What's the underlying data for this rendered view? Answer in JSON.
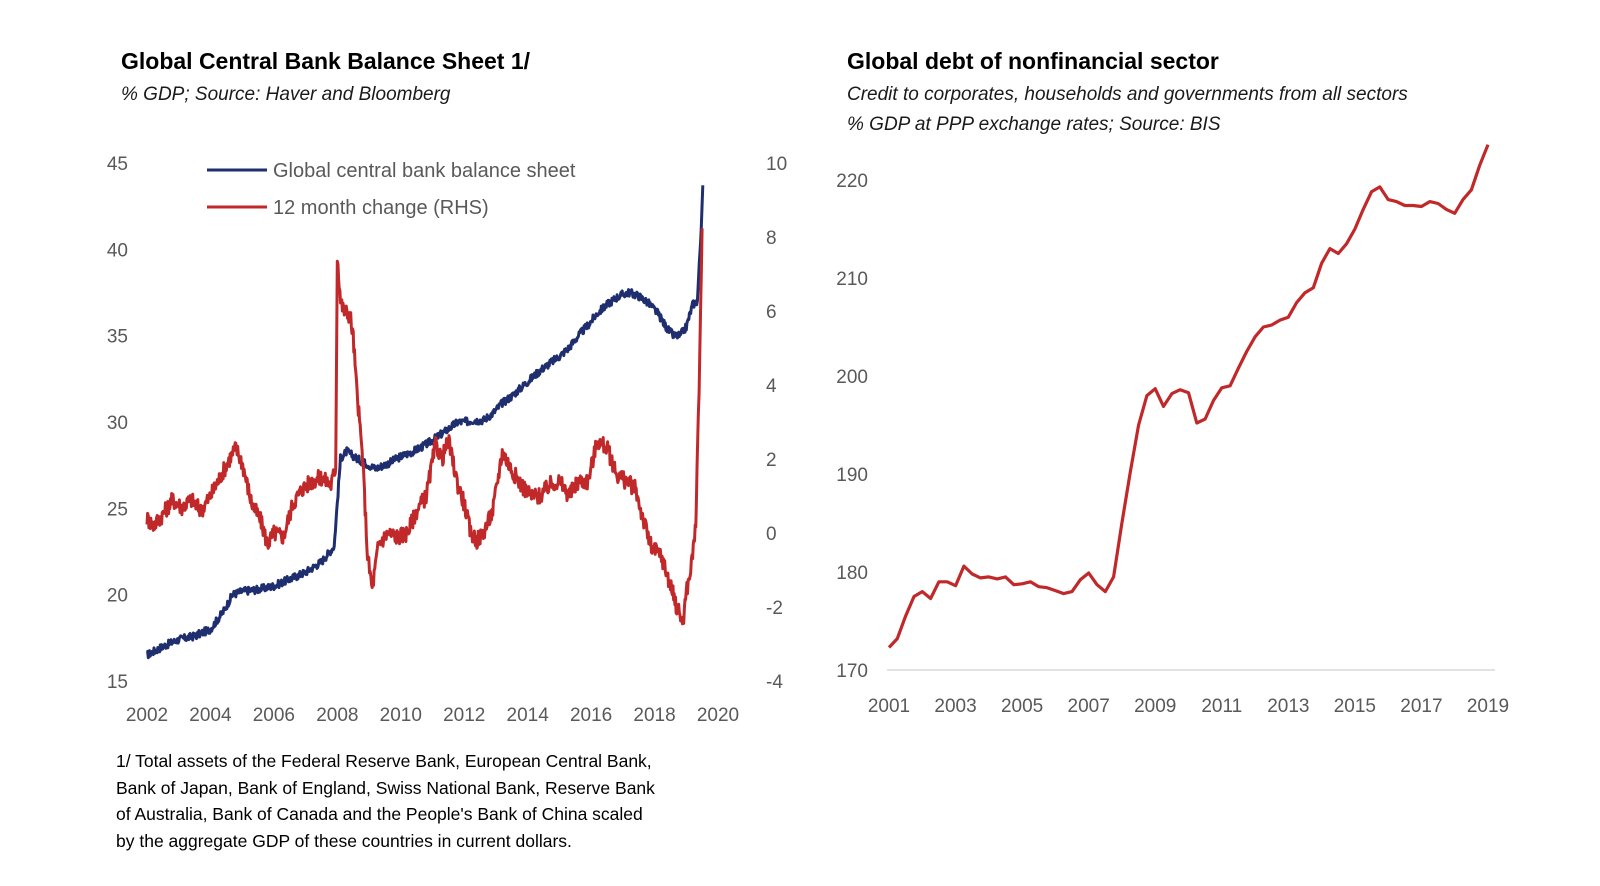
{
  "chart_data": [
    {
      "type": "line",
      "title": "Global Central Bank Balance Sheet 1/",
      "subtitle": "% GDP; Source: Haver and Bloomberg",
      "xlim": [
        2002,
        2020
      ],
      "x_ticks": [
        "2002",
        "2004",
        "2006",
        "2008",
        "2010",
        "2012",
        "2014",
        "2016",
        "2018",
        "2020"
      ],
      "ylim_left": [
        15,
        45
      ],
      "y_ticks_left": [
        "15",
        "20",
        "25",
        "30",
        "35",
        "40",
        "45"
      ],
      "ylim_right": [
        -4,
        10
      ],
      "y_ticks_right": [
        "-4",
        "-2",
        "0",
        "2",
        "4",
        "6",
        "8",
        "10"
      ],
      "legend_position": "top-center",
      "series": [
        {
          "name": "Global central bank balance sheet",
          "axis": "left",
          "color": "#1f2e6e",
          "x": [
            2002.0,
            2002.5,
            2003.0,
            2003.5,
            2004.0,
            2004.4,
            2004.7,
            2005.0,
            2005.5,
            2006.0,
            2006.5,
            2007.0,
            2007.5,
            2007.9,
            2008.1,
            2008.3,
            2008.6,
            2008.9,
            2009.2,
            2009.6,
            2010.0,
            2010.4,
            2010.8,
            2011.2,
            2011.5,
            2011.8,
            2012.0,
            2012.3,
            2012.6,
            2012.9,
            2013.2,
            2013.5,
            2013.8,
            2014.1,
            2014.4,
            2014.7,
            2015.0,
            2015.3,
            2015.6,
            2015.9,
            2016.2,
            2016.5,
            2016.8,
            2017.0,
            2017.2,
            2017.5,
            2017.8,
            2018.1,
            2018.4,
            2018.6,
            2018.8,
            2019.0,
            2019.2,
            2019.35,
            2019.45,
            2019.52
          ],
          "values": [
            16.5,
            17.0,
            17.4,
            17.6,
            18.0,
            19.0,
            20.0,
            20.2,
            20.3,
            20.5,
            20.9,
            21.3,
            21.9,
            22.8,
            27.9,
            28.3,
            27.9,
            27.6,
            27.3,
            27.6,
            28.0,
            28.3,
            28.7,
            29.2,
            29.6,
            30.0,
            30.0,
            30.1,
            30.1,
            30.5,
            31.1,
            31.5,
            32.0,
            32.5,
            33.0,
            33.4,
            33.8,
            34.3,
            35.0,
            35.6,
            36.3,
            36.8,
            37.2,
            37.4,
            37.5,
            37.3,
            36.9,
            36.3,
            35.4,
            35.0,
            35.0,
            35.5,
            36.8,
            37.0,
            40.5,
            43.5
          ]
        },
        {
          "name": "12 month change (RHS)",
          "axis": "right",
          "color": "#c0282a",
          "x": [
            2002.0,
            2002.2,
            2002.5,
            2002.8,
            2003.1,
            2003.4,
            2003.7,
            2004.0,
            2004.3,
            2004.6,
            2004.8,
            2005.0,
            2005.3,
            2005.6,
            2005.8,
            2006.0,
            2006.3,
            2006.6,
            2006.9,
            2007.2,
            2007.5,
            2007.8,
            2007.95,
            2008.0,
            2008.1,
            2008.2,
            2008.4,
            2008.5,
            2008.6,
            2008.8,
            2008.95,
            2009.1,
            2009.3,
            2009.6,
            2009.9,
            2010.2,
            2010.5,
            2010.8,
            2011.1,
            2011.3,
            2011.5,
            2011.8,
            2012.0,
            2012.2,
            2012.4,
            2012.6,
            2012.9,
            2013.2,
            2013.5,
            2013.8,
            2014.1,
            2014.4,
            2014.7,
            2015.0,
            2015.3,
            2015.6,
            2015.9,
            2016.2,
            2016.5,
            2016.8,
            2017.1,
            2017.4,
            2017.6,
            2017.9,
            2018.2,
            2018.5,
            2018.7,
            2018.9,
            2019.0,
            2019.1,
            2019.2,
            2019.3,
            2019.38,
            2019.45,
            2019.5
          ],
          "values": [
            0.4,
            0.2,
            0.5,
            0.9,
            0.7,
            0.9,
            0.6,
            1.0,
            1.5,
            2.0,
            2.3,
            1.9,
            0.8,
            0.3,
            -0.3,
            0.0,
            -0.1,
            0.8,
            1.2,
            1.4,
            1.5,
            1.3,
            1.8,
            7.5,
            6.3,
            6.0,
            5.9,
            5.3,
            4.0,
            2.0,
            -0.6,
            -1.5,
            -0.3,
            0.0,
            -0.1,
            0.0,
            0.6,
            1.0,
            2.4,
            2.0,
            2.5,
            1.3,
            0.8,
            0.0,
            -0.2,
            0.0,
            0.6,
            2.2,
            1.7,
            1.3,
            1.0,
            1.0,
            1.3,
            1.4,
            1.0,
            1.4,
            1.4,
            2.5,
            2.3,
            1.6,
            1.4,
            1.2,
            0.5,
            -0.4,
            -0.6,
            -1.4,
            -2.0,
            -2.4,
            -1.6,
            -1.2,
            -0.6,
            0.3,
            3.0,
            6.0,
            8.2
          ]
        }
      ]
    },
    {
      "type": "line",
      "title": "Global debt of nonfinancial sector",
      "subtitle": [
        "Credit to corporates, households and governments from all sectors",
        "% GDP at PPP exchange rates; Source: BIS"
      ],
      "xlim": [
        2001,
        2019
      ],
      "x_ticks": [
        "2001",
        "2003",
        "2005",
        "2007",
        "2009",
        "2011",
        "2013",
        "2015",
        "2017",
        "2019"
      ],
      "ylim": [
        170,
        225
      ],
      "y_ticks": [
        "170",
        "180",
        "190",
        "200",
        "210",
        "220"
      ],
      "series": [
        {
          "name": "Global debt of nonfinancial sector",
          "color": "#c0282a",
          "x": [
            2001.0,
            2001.25,
            2001.5,
            2001.75,
            2002.0,
            2002.25,
            2002.5,
            2002.75,
            2003.0,
            2003.25,
            2003.5,
            2003.75,
            2004.0,
            2004.25,
            2004.5,
            2004.75,
            2005.0,
            2005.25,
            2005.5,
            2005.75,
            2006.0,
            2006.25,
            2006.5,
            2006.75,
            2007.0,
            2007.25,
            2007.5,
            2007.75,
            2008.0,
            2008.25,
            2008.5,
            2008.75,
            2009.0,
            2009.25,
            2009.5,
            2009.75,
            2010.0,
            2010.25,
            2010.5,
            2010.75,
            2011.0,
            2011.25,
            2011.5,
            2011.75,
            2012.0,
            2012.25,
            2012.5,
            2012.75,
            2013.0,
            2013.25,
            2013.5,
            2013.75,
            2014.0,
            2014.25,
            2014.5,
            2014.75,
            2015.0,
            2015.25,
            2015.5,
            2015.75,
            2016.0,
            2016.25,
            2016.5,
            2016.75,
            2017.0,
            2017.25,
            2017.5,
            2017.75,
            2018.0,
            2018.25,
            2018.5,
            2018.75,
            2019.0
          ],
          "values": [
            172.3,
            173.2,
            175.5,
            177.5,
            178.0,
            177.3,
            179.0,
            179.0,
            178.6,
            180.6,
            179.8,
            179.4,
            179.5,
            179.3,
            179.5,
            178.7,
            178.8,
            179.0,
            178.5,
            178.4,
            178.1,
            177.8,
            178.0,
            179.2,
            179.9,
            178.7,
            178.0,
            179.5,
            185.0,
            190.2,
            195.0,
            198.0,
            198.7,
            196.9,
            198.2,
            198.6,
            198.3,
            195.2,
            195.6,
            197.5,
            198.8,
            199.0,
            200.8,
            202.5,
            204.0,
            205.0,
            205.2,
            205.7,
            206.0,
            207.5,
            208.5,
            209.0,
            211.5,
            213.0,
            212.5,
            213.5,
            215.0,
            217.0,
            218.8,
            219.3,
            218.0,
            217.8,
            217.4,
            217.4,
            217.3,
            217.8,
            217.6,
            217.0,
            216.6,
            218.0,
            219.0,
            221.5,
            223.6
          ]
        }
      ]
    }
  ],
  "footnote": {
    "lines": [
      "1/ Total assets of the Federal Reserve Bank, European Central Bank,",
      "Bank of Japan, Bank of England, Swiss National Bank, Reserve Bank",
      "of Australia, Bank of Canada and the People's Bank of China scaled",
      "by the aggregate GDP of these countries in current dollars."
    ]
  }
}
